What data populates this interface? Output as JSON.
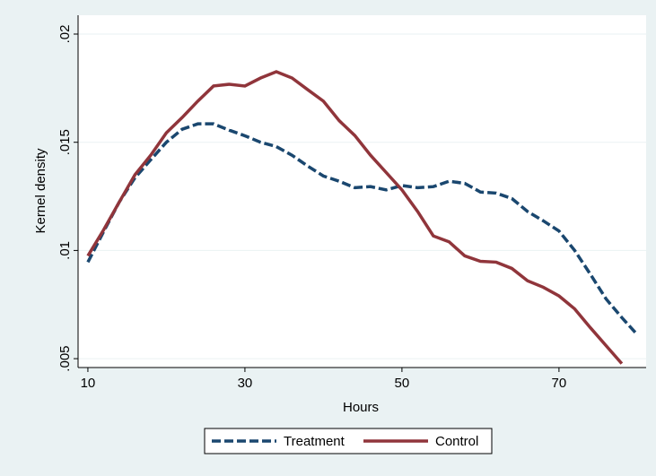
{
  "chart_data": {
    "type": "line",
    "x_label": "Hours",
    "y_label": "Kernel density",
    "x": [
      10,
      12,
      14,
      16,
      18,
      20,
      22,
      24,
      26,
      28,
      30,
      32,
      34,
      36,
      38,
      40,
      42,
      44,
      46,
      48,
      50,
      52,
      54,
      56,
      58,
      60,
      62,
      64,
      66,
      68,
      70,
      72,
      74,
      76,
      78,
      80
    ],
    "series": [
      {
        "name": "Treatment",
        "color": "#1a476f",
        "dash": true,
        "values": [
          0.00946,
          0.01087,
          0.01224,
          0.01336,
          0.01419,
          0.015,
          0.0156,
          0.01585,
          0.01585,
          0.01556,
          0.0153,
          0.015,
          0.0148,
          0.0144,
          0.0139,
          0.01344,
          0.0132,
          0.0129,
          0.01295,
          0.0128,
          0.013,
          0.0129,
          0.01295,
          0.0132,
          0.0131,
          0.0127,
          0.01265,
          0.0124,
          0.0118,
          0.01137,
          0.0109,
          0.01,
          0.0089,
          0.00776,
          0.0069,
          0.0061
        ]
      },
      {
        "name": "Control",
        "color": "#90353b",
        "dash": false,
        "values": [
          0.00975,
          0.01095,
          0.01224,
          0.0135,
          0.0144,
          0.01544,
          0.01614,
          0.0169,
          0.0176,
          0.01768,
          0.0176,
          0.01797,
          0.01826,
          0.01797,
          0.01743,
          0.0169,
          0.016,
          0.01531,
          0.0144,
          0.0136,
          0.0128,
          0.0118,
          0.01067,
          0.0104,
          0.00975,
          0.0095,
          0.00946,
          0.00917,
          0.0086,
          0.0083,
          0.0079,
          0.0073,
          0.00643,
          0.0056,
          0.00477,
          null
        ]
      }
    ],
    "xlim": [
      8.75,
      81.1
    ],
    "ylim": [
      0.00459,
      0.02087
    ],
    "xticks": [
      10,
      30,
      50,
      70
    ],
    "yticks": [
      {
        "value": 0.005,
        "label": ".005"
      },
      {
        "value": 0.01,
        "label": ".01"
      },
      {
        "value": 0.015,
        "label": ".015"
      },
      {
        "value": 0.02,
        "label": ".02"
      }
    ],
    "grid": true,
    "legend": "bottom"
  }
}
